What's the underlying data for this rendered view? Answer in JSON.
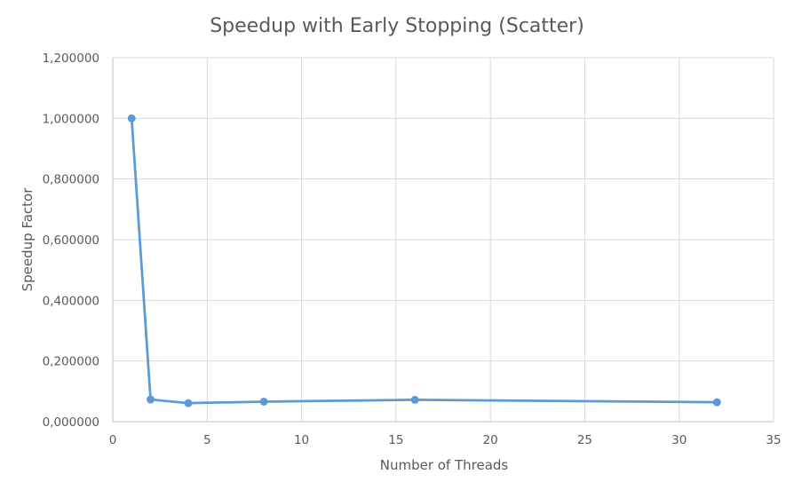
{
  "chart_data": {
    "type": "scatter",
    "title": "Speedup with Early Stopping (Scatter)",
    "xlabel": "Number of Threads",
    "ylabel": "Speedup Factor",
    "xlim": [
      0,
      35
    ],
    "ylim": [
      0,
      1.2
    ],
    "x_ticks": [
      0,
      5,
      10,
      15,
      20,
      25,
      30,
      35
    ],
    "x_tick_labels": [
      "0",
      "5",
      "10",
      "15",
      "20",
      "25",
      "30",
      "35"
    ],
    "y_ticks": [
      0,
      0.2,
      0.4,
      0.6,
      0.8,
      1.0,
      1.2
    ],
    "y_tick_labels": [
      "0,000000",
      "0,200000",
      "0,400000",
      "0,600000",
      "0,800000",
      "1,000000",
      "1,200000"
    ],
    "grid": true,
    "legend": "none",
    "series": [
      {
        "color": "#5b9bd5",
        "x": [
          1,
          2,
          4,
          8,
          16,
          32
        ],
        "y": [
          1.0,
          0.073,
          0.061,
          0.066,
          0.072,
          0.064
        ],
        "connected": true
      }
    ]
  }
}
